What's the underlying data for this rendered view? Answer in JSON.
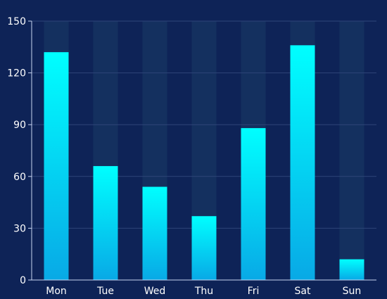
{
  "colors": {
    "background": "#0e2357",
    "grid": "#2e4578",
    "axis": "#c8d4f0",
    "label": "#ffffff",
    "bar_track": "#14305f",
    "bar_top": "#00ffff",
    "bar_bottom": "#08a9e6"
  },
  "chart_data": {
    "type": "bar",
    "title": "",
    "xlabel": "",
    "ylabel": "",
    "categories": [
      "Mon",
      "Tue",
      "Wed",
      "Thu",
      "Fri",
      "Sat",
      "Sun"
    ],
    "values": [
      132,
      66,
      54,
      37,
      88,
      136,
      12
    ],
    "ylim": [
      0,
      150
    ],
    "yticks": [
      0,
      30,
      60,
      90,
      120,
      150
    ],
    "background_bars": true,
    "background_bar_value": 150,
    "grid": true,
    "legend": "none"
  }
}
